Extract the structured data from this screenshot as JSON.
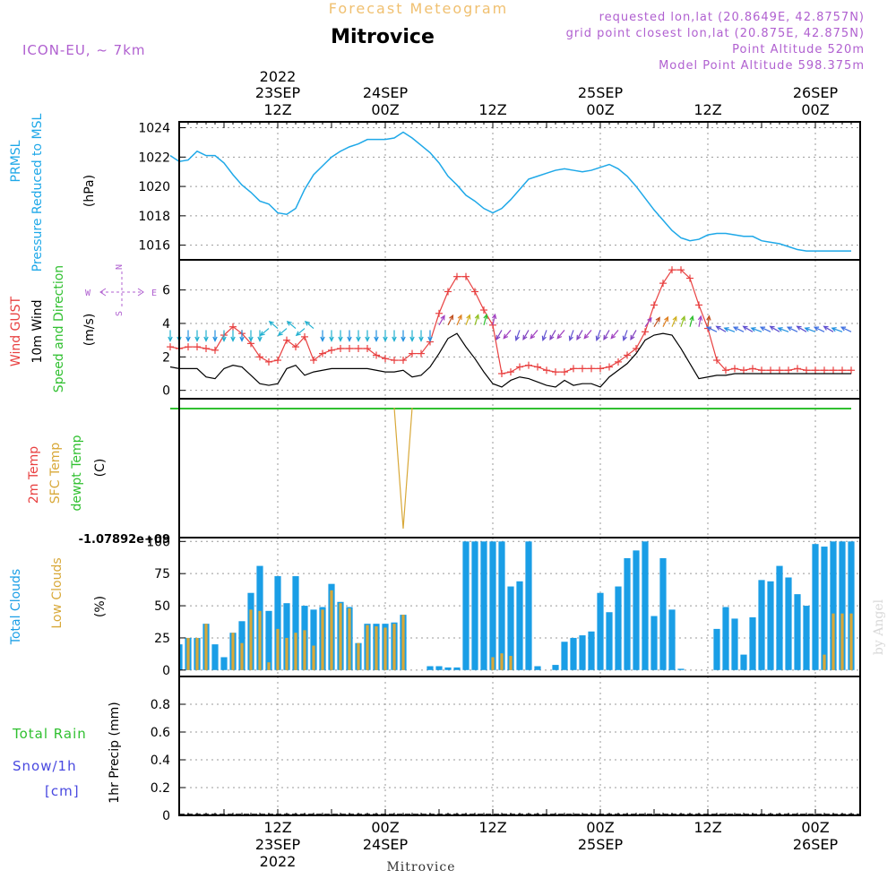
{
  "header": {
    "product": "Forecast Meteogram",
    "location": "Mitrovice",
    "model": "ICON-EU, ~ 7km",
    "requested": "requested lon,lat (20.8649E, 42.8757N)",
    "grid_point": "grid point closest lon,lat (20.875E, 42.875N)",
    "point_altitude": "Point Altitude 520m",
    "model_altitude": "Model Point Altitude 598.375m",
    "footer": "Mitrovice",
    "watermark": "by Angel"
  },
  "time_axis": {
    "top_labels": [
      {
        "hour": 12,
        "l1": "2022",
        "l2": "23SEP",
        "l3": "12Z"
      },
      {
        "hour": 24,
        "l1": "",
        "l2": "24SEP",
        "l3": "00Z"
      },
      {
        "hour": 36,
        "l1": "",
        "l2": "",
        "l3": "12Z"
      },
      {
        "hour": 48,
        "l1": "",
        "l2": "25SEP",
        "l3": "00Z"
      },
      {
        "hour": 60,
        "l1": "",
        "l2": "",
        "l3": "12Z"
      },
      {
        "hour": 72,
        "l1": "",
        "l2": "26SEP",
        "l3": "00Z"
      }
    ],
    "bottom_labels": [
      {
        "hour": 12,
        "l1": "12Z",
        "l2": "23SEP",
        "l3": "2022"
      },
      {
        "hour": 24,
        "l1": "00Z",
        "l2": "24SEP",
        "l3": ""
      },
      {
        "hour": 36,
        "l1": "12Z",
        "l2": "",
        "l3": ""
      },
      {
        "hour": 48,
        "l1": "00Z",
        "l2": "25SEP",
        "l3": ""
      },
      {
        "hour": 60,
        "l1": "12Z",
        "l2": "",
        "l3": ""
      },
      {
        "hour": 72,
        "l1": "00Z",
        "l2": "26SEP",
        "l3": ""
      }
    ]
  },
  "colors": {
    "pressure": "#1ea8e8",
    "gust": "#e84040",
    "wind": "#000000",
    "total_clouds": "#1a9ee6",
    "low_clouds": "#d8a838",
    "temp2m": "#e84040",
    "sfc_temp": "#d8a838",
    "dewpt": "#30c030",
    "rain": "#30c030",
    "snow": "#4848e0",
    "purple": "#b060d0",
    "orange": "#f0c070"
  },
  "panels": {
    "pressure": {
      "label1": "PRMSL",
      "label2": "Pressure Reduced to MSL",
      "unit": "(hPa)"
    },
    "wind": {
      "label1": "Wind GUST",
      "label2": "10m Wind",
      "label3": "Speed and Direction",
      "unit": "(m/s)",
      "compass_n": "N",
      "compass_s": "S",
      "compass_w": "W",
      "compass_e": "E"
    },
    "temp": {
      "label1": "2m Temp",
      "label2": "SFC Temp",
      "label3": "dewpt Temp",
      "unit": "(C)",
      "min_label": "-1.07892e+09"
    },
    "clouds": {
      "label1": "Total Clouds",
      "label2": "Low Clouds",
      "unit": "(%)"
    },
    "precip": {
      "label_rain": "Total  Rain",
      "label_snow": "Snow/1h",
      "label_cm": "[cm]",
      "unit": "1hr Precip (mm)"
    }
  },
  "chart_data": [
    {
      "type": "line",
      "name": "PRMSL",
      "x_unit": "hours since 23SEP 00Z",
      "x": [
        0,
        1,
        2,
        3,
        4,
        5,
        6,
        7,
        8,
        9,
        10,
        11,
        12,
        13,
        14,
        15,
        16,
        17,
        18,
        19,
        20,
        21,
        22,
        23,
        24,
        25,
        26,
        27,
        28,
        29,
        30,
        31,
        32,
        33,
        34,
        35,
        36,
        37,
        38,
        39,
        40,
        41,
        42,
        43,
        44,
        45,
        46,
        47,
        48,
        49,
        50,
        51,
        52,
        53,
        54,
        55,
        56,
        57,
        58,
        59,
        60,
        61,
        62,
        63,
        64,
        65,
        66,
        67,
        68,
        69,
        70,
        71,
        72,
        73,
        74,
        75,
        76
      ],
      "values": [
        1022.1,
        1021.7,
        1021.8,
        1022.4,
        1022.1,
        1022.1,
        1021.6,
        1020.8,
        1020.1,
        1019.6,
        1019.0,
        1018.8,
        1018.2,
        1018.1,
        1018.5,
        1019.8,
        1020.8,
        1021.4,
        1022.0,
        1022.4,
        1022.7,
        1022.9,
        1023.2,
        1023.2,
        1023.2,
        1023.3,
        1023.7,
        1023.3,
        1022.8,
        1022.3,
        1021.6,
        1020.7,
        1020.1,
        1019.4,
        1019.0,
        1018.5,
        1018.2,
        1018.5,
        1019.1,
        1019.8,
        1020.5,
        1020.7,
        1020.9,
        1021.1,
        1021.2,
        1021.1,
        1021.0,
        1021.1,
        1021.3,
        1021.5,
        1021.2,
        1020.7,
        1020.0,
        1019.2,
        1018.4,
        1017.7,
        1017.0,
        1016.5,
        1016.3,
        1016.4,
        1016.7,
        1016.8,
        1016.8,
        1016.7,
        1016.6,
        1016.6,
        1016.3,
        1016.2,
        1016.1,
        1015.9,
        1015.7,
        1015.6,
        1015.6,
        1015.6,
        1015.6,
        1015.6,
        1015.6
      ],
      "ylim": [
        1015,
        1024.4
      ],
      "yticks": [
        1016,
        1018,
        1020,
        1022,
        1024
      ]
    },
    {
      "type": "line",
      "name": "Wind",
      "x": [
        0,
        1,
        2,
        3,
        4,
        5,
        6,
        7,
        8,
        9,
        10,
        11,
        12,
        13,
        14,
        15,
        16,
        17,
        18,
        19,
        20,
        21,
        22,
        23,
        24,
        25,
        26,
        27,
        28,
        29,
        30,
        31,
        32,
        33,
        34,
        35,
        36,
        37,
        38,
        39,
        40,
        41,
        42,
        43,
        44,
        45,
        46,
        47,
        48,
        49,
        50,
        51,
        52,
        53,
        54,
        55,
        56,
        57,
        58,
        59,
        60,
        61,
        62,
        63,
        64,
        65,
        66,
        67,
        68,
        69,
        70,
        71,
        72,
        73,
        74,
        75,
        76
      ],
      "series": [
        {
          "name": "Wind GUST",
          "values": [
            2.6,
            2.5,
            2.6,
            2.6,
            2.5,
            2.4,
            3.3,
            3.8,
            3.4,
            2.8,
            2.0,
            1.7,
            1.8,
            3.0,
            2.6,
            3.2,
            1.8,
            2.2,
            2.4,
            2.5,
            2.5,
            2.5,
            2.5,
            2.1,
            1.9,
            1.8,
            1.8,
            2.2,
            2.2,
            2.9,
            4.6,
            5.9,
            6.8,
            6.8,
            5.9,
            4.8,
            3.9,
            1.0,
            1.1,
            1.4,
            1.5,
            1.4,
            1.2,
            1.1,
            1.1,
            1.3,
            1.3,
            1.3,
            1.3,
            1.4,
            1.7,
            2.1,
            2.5,
            3.5,
            5.1,
            6.4,
            7.2,
            7.2,
            6.7,
            5.1,
            3.7,
            1.8,
            1.2,
            1.3,
            1.2,
            1.3,
            1.2,
            1.2,
            1.2,
            1.2,
            1.3,
            1.2,
            1.2,
            1.2,
            1.2,
            1.2,
            1.2
          ]
        },
        {
          "name": "10m Wind",
          "values": [
            1.4,
            1.3,
            1.3,
            1.3,
            0.8,
            0.7,
            1.3,
            1.5,
            1.4,
            0.9,
            0.4,
            0.3,
            0.4,
            1.3,
            1.5,
            0.9,
            1.1,
            1.2,
            1.3,
            1.3,
            1.3,
            1.3,
            1.3,
            1.2,
            1.1,
            1.1,
            1.2,
            0.8,
            0.9,
            1.4,
            2.2,
            3.1,
            3.4,
            2.6,
            1.9,
            1.1,
            0.4,
            0.2,
            0.6,
            0.8,
            0.7,
            0.5,
            0.3,
            0.2,
            0.6,
            0.3,
            0.4,
            0.4,
            0.2,
            0.8,
            1.2,
            1.6,
            2.2,
            3.0,
            3.3,
            3.4,
            3.3,
            2.5,
            1.6,
            0.7,
            0.8,
            0.9,
            0.9,
            1.0,
            1.0,
            1.0,
            1.0,
            1.0,
            1.0,
            1.0,
            1.0,
            1.0,
            1.0,
            1.0,
            1.0,
            1.0,
            1.0
          ]
        }
      ],
      "ylim": [
        -0.5,
        7.8
      ],
      "yticks": [
        0,
        2,
        4,
        6
      ]
    },
    {
      "type": "line",
      "name": "Temperature",
      "series": [
        {
          "name": "dewpt Temp",
          "x": [
            0,
            76
          ],
          "values": [
            0,
            0
          ]
        },
        {
          "name": "SFC Temp",
          "x": [
            25,
            26,
            27
          ],
          "values": [
            0,
            -1,
            0
          ]
        }
      ],
      "ylim_label": "-1.07892e+09"
    },
    {
      "type": "bar",
      "name": "Clouds",
      "x": [
        0,
        1,
        2,
        3,
        4,
        5,
        6,
        7,
        8,
        9,
        10,
        11,
        12,
        13,
        14,
        15,
        16,
        17,
        18,
        19,
        20,
        21,
        22,
        23,
        24,
        25,
        26,
        27,
        28,
        29,
        30,
        31,
        32,
        33,
        34,
        35,
        36,
        37,
        38,
        39,
        40,
        41,
        42,
        43,
        44,
        45,
        46,
        47,
        48,
        49,
        50,
        51,
        52,
        53,
        54,
        55,
        56,
        57,
        58,
        59,
        60,
        61,
        62,
        63,
        64,
        65,
        66,
        67,
        68,
        69,
        70,
        71,
        72,
        73,
        74,
        75,
        76
      ],
      "series": [
        {
          "name": "Total Clouds",
          "values": [
            42,
            20,
            25,
            25,
            36,
            20,
            10,
            29,
            38,
            60,
            81,
            46,
            73,
            52,
            73,
            50,
            47,
            49,
            67,
            53,
            49,
            21,
            36,
            36,
            36,
            37,
            43,
            0,
            0,
            3,
            3,
            2,
            2,
            100,
            100,
            100,
            100,
            100,
            65,
            69,
            100,
            3,
            0,
            4,
            22,
            25,
            27,
            30,
            60,
            45,
            65,
            87,
            93,
            100,
            42,
            87,
            47,
            1,
            0,
            0,
            0,
            32,
            49,
            40,
            12,
            41,
            70,
            69,
            81,
            72,
            59,
            50,
            98,
            96,
            100,
            100,
            100
          ]
        },
        {
          "name": "Low Clouds",
          "values": [
            26,
            0,
            25,
            25,
            36,
            0,
            0,
            29,
            21,
            47,
            46,
            6,
            32,
            25,
            29,
            31,
            19,
            47,
            62,
            52,
            48,
            21,
            35,
            34,
            33,
            36,
            43,
            0,
            0,
            0,
            0,
            0,
            0,
            0,
            0,
            0,
            10,
            13,
            11,
            0,
            0,
            0,
            0,
            0,
            0,
            0,
            0,
            0,
            0,
            0,
            0,
            0,
            0,
            0,
            0,
            0,
            0,
            0,
            0,
            0,
            0,
            0,
            0,
            0,
            0,
            0,
            0,
            0,
            0,
            0,
            0,
            0,
            0,
            12,
            44,
            44,
            44
          ]
        }
      ],
      "ylim": [
        -5,
        103
      ],
      "yticks": [
        0,
        25,
        50,
        75,
        100
      ]
    },
    {
      "type": "line",
      "name": "1hr Precip",
      "series": [
        {
          "name": "Total Rain",
          "x": [
            0,
            76
          ],
          "values": [
            0,
            0
          ]
        }
      ],
      "ylim": [
        0,
        1.0
      ],
      "yticks": [
        0,
        0.2,
        0.4,
        0.6,
        0.8
      ]
    }
  ]
}
